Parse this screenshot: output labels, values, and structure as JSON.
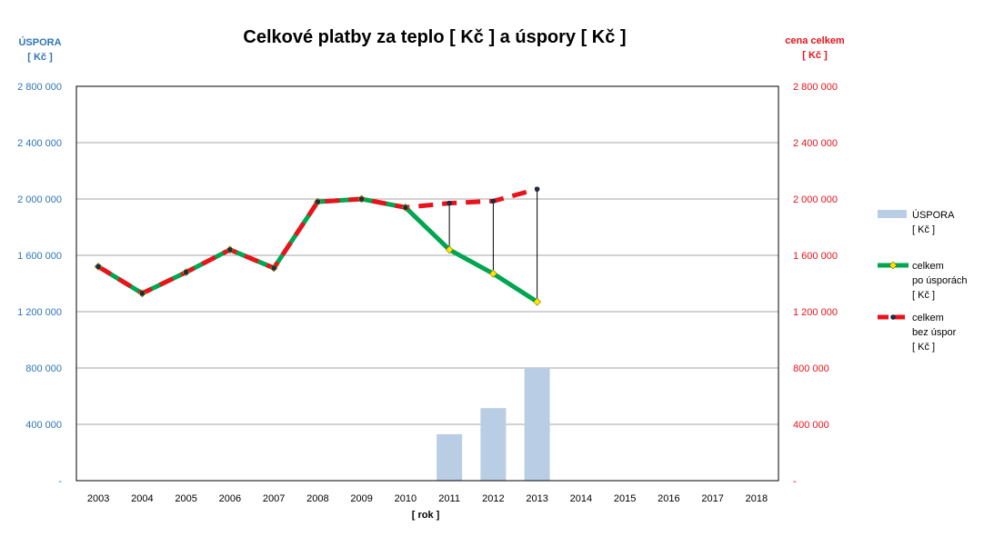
{
  "chart_data": {
    "type": "bar",
    "title": "Celkové platby za teplo [ Kč ]  a úspory [ Kč ]",
    "left_axis_label": [
      "ÚSPORA",
      "[ Kč ]"
    ],
    "right_axis_label": [
      "cena celkem",
      "[ Kč ]"
    ],
    "xlabel": "[ rok ]",
    "categories": [
      "2003",
      "2004",
      "2005",
      "2006",
      "2007",
      "2008",
      "2009",
      "2010",
      "2011",
      "2012",
      "2013",
      "2014",
      "2015",
      "2016",
      "2017",
      "2018"
    ],
    "ylim": [
      0,
      2800000
    ],
    "yticks": [
      0,
      400000,
      800000,
      1200000,
      1600000,
      2000000,
      2400000,
      2800000
    ],
    "ytick_labels": [
      "-",
      "400 000",
      "800 000",
      "1 200 000",
      "1 600 000",
      "2 000 000",
      "2 400 000",
      "2 800 000"
    ],
    "grid": true,
    "legend_position": "right",
    "series": [
      {
        "name": "ÚSPORA [ Kč ]",
        "type": "bar",
        "color": "#B9CDE5",
        "values": [
          null,
          null,
          null,
          null,
          null,
          null,
          null,
          null,
          330000,
          515000,
          800000,
          null,
          null,
          null,
          null,
          null
        ]
      },
      {
        "name": "celkem po úsporách [ Kč ]",
        "type": "line",
        "color": "#00A550",
        "marker_color": "#FFE600",
        "values": [
          1520000,
          1330000,
          1480000,
          1640000,
          1510000,
          1980000,
          2000000,
          1940000,
          1640000,
          1470000,
          1270000,
          null,
          null,
          null,
          null,
          null
        ]
      },
      {
        "name": "celkem bez úspor [ Kč ]",
        "type": "line",
        "style": "dashed",
        "color": "#E8131B",
        "marker_color": "#1F2A44",
        "values": [
          1520000,
          1330000,
          1480000,
          1640000,
          1510000,
          1980000,
          2000000,
          1940000,
          1970000,
          1985000,
          2070000,
          null,
          null,
          null,
          null,
          null
        ]
      }
    ],
    "legend": [
      {
        "lines": [
          "ÚSPORA",
          "[ Kč ]"
        ]
      },
      {
        "lines": [
          "celkem",
          "po úsporách",
          "[ Kč ]"
        ]
      },
      {
        "lines": [
          "celkem",
          "bez úspor",
          "[ Kč ]"
        ]
      }
    ],
    "colors": {
      "left_axis": "#2E75B6",
      "right_axis": "#E8131B",
      "grid": "#A6A6A6",
      "frame": "#000000"
    }
  }
}
